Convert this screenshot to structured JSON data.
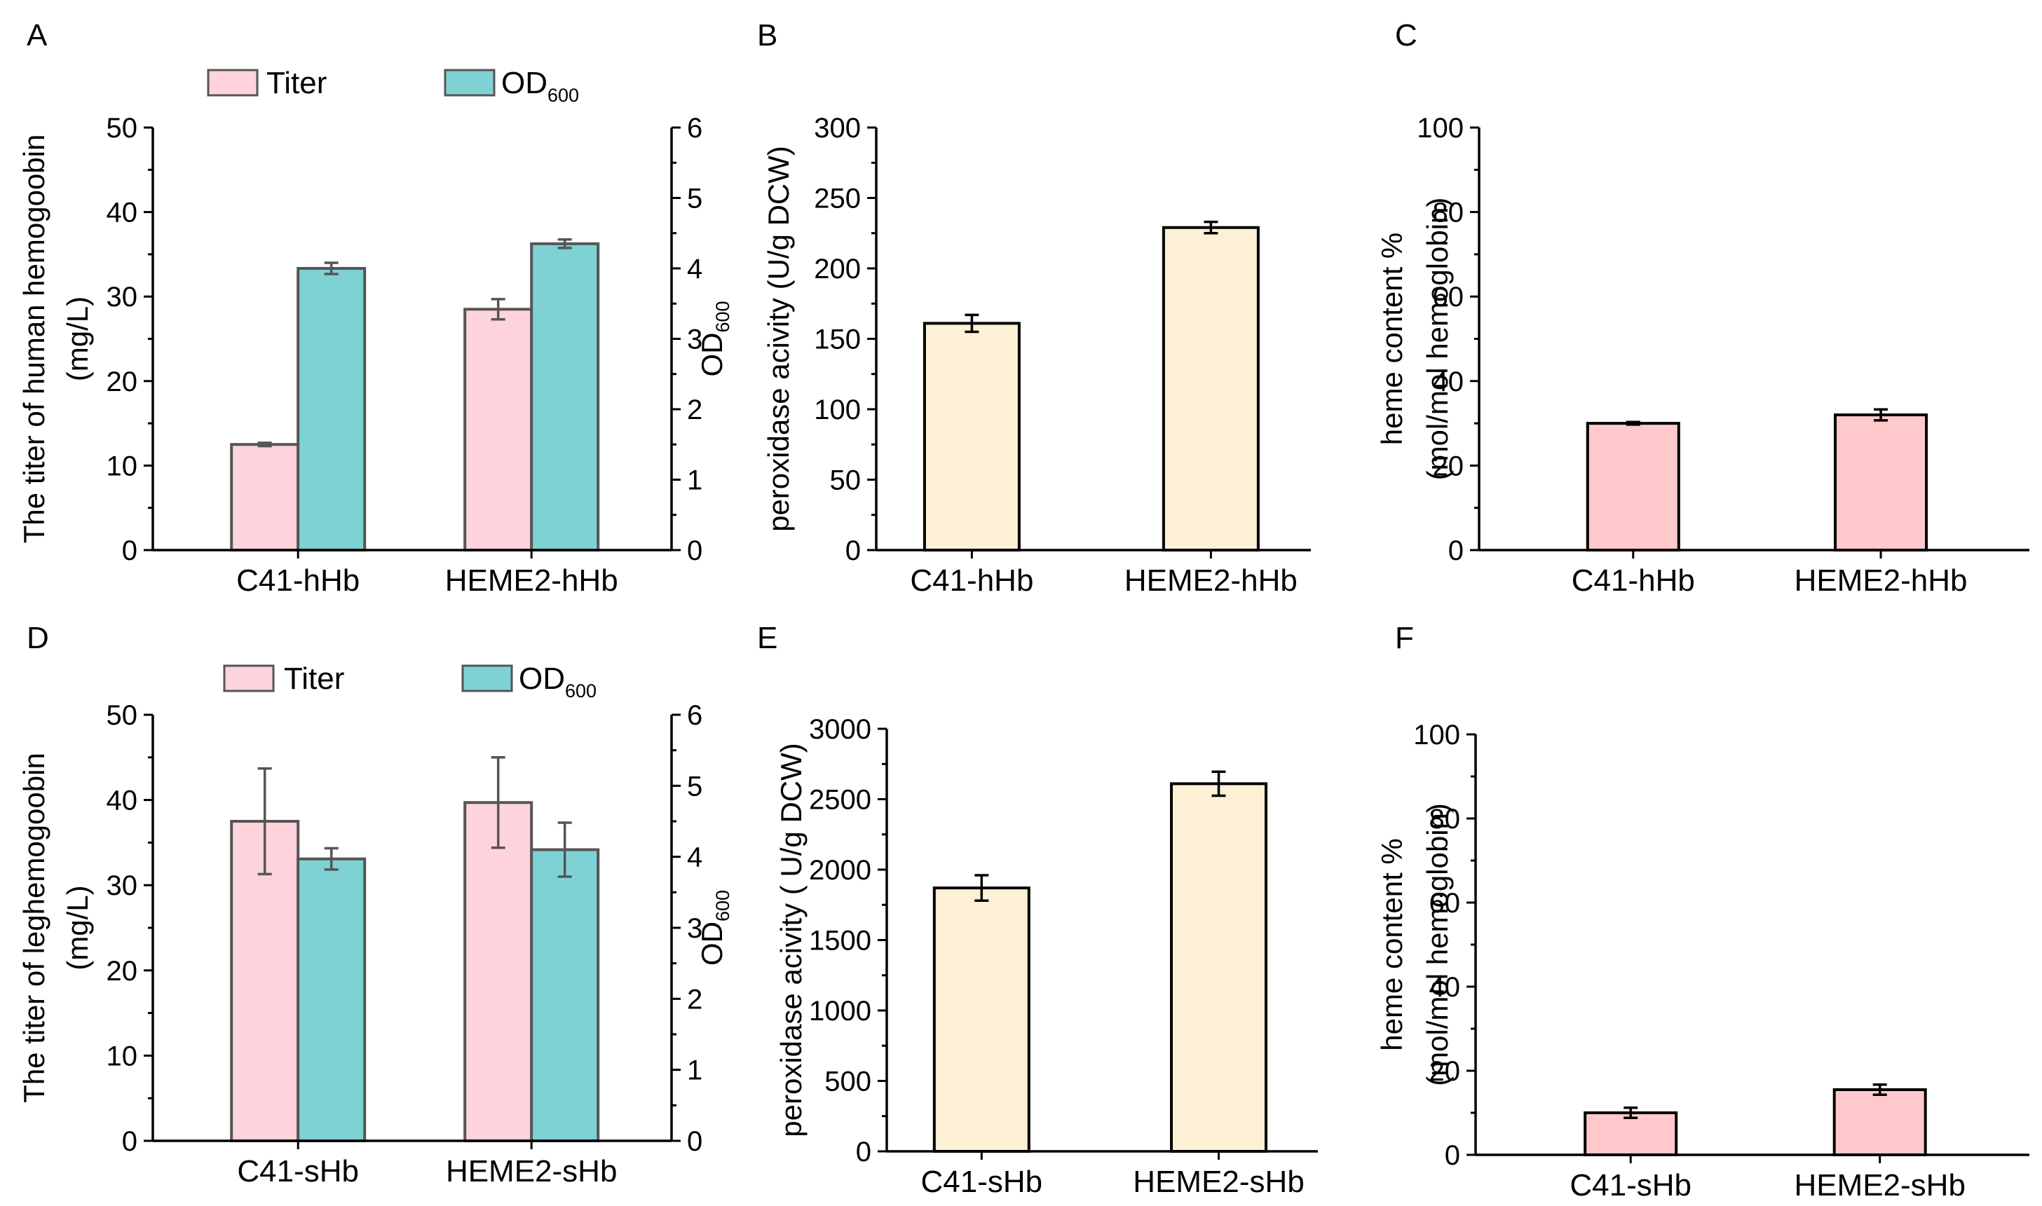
{
  "chart_data": [
    {
      "panel": "A",
      "type": "bar",
      "categories": [
        "C41-hHb",
        "HEME2-hHb"
      ],
      "series": [
        {
          "name": "Titer",
          "axis": "left",
          "color": "#FFD3DC",
          "values": [
            12.5,
            28.5
          ],
          "errors": [
            0.2,
            1.2
          ]
        },
        {
          "name": "OD",
          "name_sub": "600",
          "axis": "right",
          "color": "#7FD2D4",
          "values": [
            4.0,
            4.35
          ],
          "errors": [
            0.08,
            0.06
          ]
        }
      ],
      "ylabel": [
        "The titer of human hemogoobin",
        "(mg/L)"
      ],
      "ylabel2": "OD",
      "ylabel2_sub": "600",
      "ylim": [
        0,
        50
      ],
      "yticks": [
        0,
        10,
        20,
        30,
        40,
        50
      ],
      "ylim2": [
        0,
        6
      ],
      "yticks2": [
        0,
        1,
        2,
        3,
        4,
        5,
        6
      ],
      "legend": "top"
    },
    {
      "panel": "B",
      "type": "bar",
      "categories": [
        "C41-hHb",
        "HEME2-hHb"
      ],
      "series": [
        {
          "color": "#FDF0D5",
          "values": [
            161,
            229
          ],
          "errors": [
            6,
            4
          ]
        }
      ],
      "ylabel": [
        "peroxidase acivity (U/g DCW)"
      ],
      "ylim": [
        0,
        300
      ],
      "yticks": [
        0,
        50,
        100,
        150,
        200,
        250,
        300
      ]
    },
    {
      "panel": "C",
      "type": "bar",
      "categories": [
        "C41-hHb",
        "HEME2-hHb"
      ],
      "series": [
        {
          "color": "#FFC8CB",
          "values": [
            30,
            32
          ],
          "errors": [
            0.3,
            1.3
          ]
        }
      ],
      "ylabel": [
        "heme content %",
        "(mol/mol hemoglobin)"
      ],
      "ylim": [
        0,
        100
      ],
      "yticks": [
        0,
        20,
        40,
        60,
        80,
        100
      ]
    },
    {
      "panel": "D",
      "type": "bar",
      "categories": [
        "C41-sHb",
        "HEME2-sHb"
      ],
      "series": [
        {
          "name": "Titer",
          "axis": "left",
          "color": "#FFD3DC",
          "values": [
            37.5,
            39.7
          ],
          "errors": [
            6.2,
            5.3
          ]
        },
        {
          "name": "OD",
          "name_sub": "600",
          "axis": "right",
          "color": "#7FD2D4",
          "values": [
            3.97,
            4.1
          ],
          "errors": [
            0.15,
            0.38
          ]
        }
      ],
      "ylabel": [
        "The titer of leghemogoobin",
        "(mg/L)"
      ],
      "ylabel2": "OD",
      "ylabel2_sub": "600",
      "ylim": [
        0,
        50
      ],
      "yticks": [
        0,
        10,
        20,
        30,
        40,
        50
      ],
      "ylim2": [
        0,
        6
      ],
      "yticks2": [
        0,
        1,
        2,
        3,
        4,
        5,
        6
      ],
      "legend": "top"
    },
    {
      "panel": "E",
      "type": "bar",
      "categories": [
        "C41-sHb",
        "HEME2-sHb"
      ],
      "series": [
        {
          "color": "#FDF0D5",
          "values": [
            1870,
            2610
          ],
          "errors": [
            90,
            85
          ]
        }
      ],
      "ylabel": [
        "peroxidase acivity ( U/g DCW)"
      ],
      "ylim": [
        0,
        3000
      ],
      "yticks": [
        0,
        500,
        1000,
        1500,
        2000,
        2500,
        3000
      ]
    },
    {
      "panel": "F",
      "type": "bar",
      "categories": [
        "C41-sHb",
        "HEME2-sHb"
      ],
      "series": [
        {
          "color": "#FFC8CB",
          "values": [
            10,
            15.5
          ],
          "errors": [
            1.2,
            1.2
          ]
        }
      ],
      "ylabel": [
        "heme content %",
        "(mol/mol hemoglobin)"
      ],
      "ylim": [
        0,
        100
      ],
      "yticks": [
        0,
        20,
        40,
        60,
        80,
        100
      ]
    }
  ]
}
